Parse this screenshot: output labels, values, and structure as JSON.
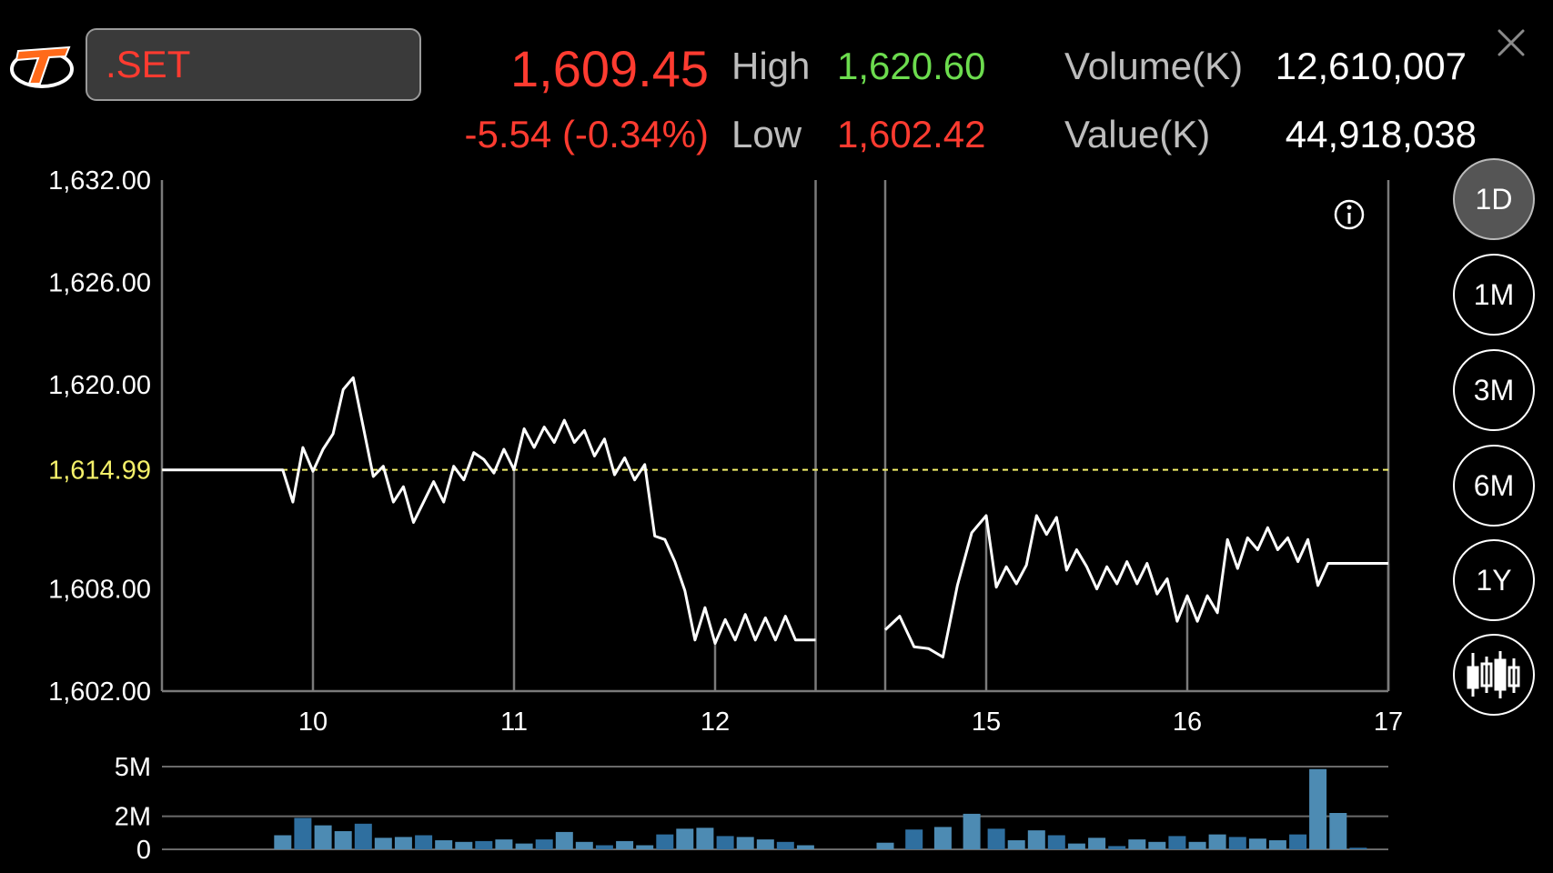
{
  "header": {
    "symbol": ".SET",
    "price": "1,609.45",
    "change": "-5.54 (-0.34%)",
    "high_label": "High",
    "high_value": "1,620.60",
    "low_label": "Low",
    "low_value": "1,602.42",
    "volume_label": "Volume(K)",
    "volume_value": "12,610,007",
    "value_label": "Value(K)",
    "value_value": "44,918,038"
  },
  "periods": [
    {
      "label": "1D",
      "active": true
    },
    {
      "label": "1M",
      "active": false
    },
    {
      "label": "3M",
      "active": false
    },
    {
      "label": "6M",
      "active": false
    },
    {
      "label": "1Y",
      "active": false
    }
  ],
  "colors": {
    "down": "#ff3b30",
    "up": "#6cdc4e",
    "prev_close": "#f4f06a",
    "volume_bar": "#4d8bb3",
    "volume_bar_highlight": "#2f6f9f",
    "logo": "#ff6a1a"
  },
  "icons": {
    "logo": "streaming-logo-icon",
    "close": "close-icon",
    "info": "info-icon",
    "chart_type": "candlestick-icon"
  },
  "chart_data": {
    "type": "line",
    "y_ticks": [
      "1,632.00",
      "1,626.00",
      "1,620.00",
      "1,608.00",
      "1,602.00"
    ],
    "y_tick_values": [
      1632,
      1626,
      1620,
      1608,
      1602
    ],
    "ylim": [
      1602,
      1632
    ],
    "prev_close_label": "1,614.99",
    "prev_close": 1614.99,
    "x_ticks": [
      "10",
      "11",
      "12",
      "15",
      "16",
      "17"
    ],
    "x_tick_values": [
      10,
      11,
      12,
      15,
      16,
      17
    ],
    "break_start": 12.5,
    "break_end": 14.65,
    "series": [
      {
        "session": "morning",
        "points": [
          [
            9.25,
            1614.99
          ],
          [
            9.85,
            1614.99
          ],
          [
            9.9,
            1613.1
          ],
          [
            9.95,
            1616.3
          ],
          [
            10.0,
            1614.9
          ],
          [
            10.05,
            1616.2
          ],
          [
            10.1,
            1617.1
          ],
          [
            10.15,
            1619.7
          ],
          [
            10.2,
            1620.4
          ],
          [
            10.25,
            1617.5
          ],
          [
            10.3,
            1614.6
          ],
          [
            10.35,
            1615.2
          ],
          [
            10.4,
            1613.1
          ],
          [
            10.45,
            1614.0
          ],
          [
            10.5,
            1611.9
          ],
          [
            10.55,
            1613.1
          ],
          [
            10.6,
            1614.3
          ],
          [
            10.65,
            1613.1
          ],
          [
            10.7,
            1615.2
          ],
          [
            10.75,
            1614.4
          ],
          [
            10.8,
            1616.0
          ],
          [
            10.85,
            1615.6
          ],
          [
            10.9,
            1614.8
          ],
          [
            10.95,
            1616.2
          ],
          [
            11.0,
            1615.0
          ],
          [
            11.05,
            1617.4
          ],
          [
            11.1,
            1616.3
          ],
          [
            11.15,
            1617.5
          ],
          [
            11.2,
            1616.6
          ],
          [
            11.25,
            1617.9
          ],
          [
            11.3,
            1616.6
          ],
          [
            11.35,
            1617.3
          ],
          [
            11.4,
            1615.8
          ],
          [
            11.45,
            1616.8
          ],
          [
            11.5,
            1614.7
          ],
          [
            11.55,
            1615.7
          ],
          [
            11.6,
            1614.4
          ],
          [
            11.65,
            1615.3
          ],
          [
            11.7,
            1611.1
          ],
          [
            11.75,
            1610.9
          ],
          [
            11.8,
            1609.6
          ],
          [
            11.85,
            1607.9
          ],
          [
            11.9,
            1605.0
          ],
          [
            11.95,
            1606.9
          ],
          [
            12.0,
            1604.8
          ],
          [
            12.05,
            1606.2
          ],
          [
            12.1,
            1605.0
          ],
          [
            12.15,
            1606.5
          ],
          [
            12.2,
            1605.0
          ],
          [
            12.25,
            1606.3
          ],
          [
            12.3,
            1605.0
          ],
          [
            12.35,
            1606.4
          ],
          [
            12.4,
            1605.0
          ],
          [
            12.5,
            1605.0
          ]
        ]
      },
      {
        "session": "afternoon",
        "points": [
          [
            14.65,
            1605.6
          ],
          [
            14.7,
            1606.4
          ],
          [
            14.75,
            1604.6
          ],
          [
            14.8,
            1604.5
          ],
          [
            14.85,
            1604.0
          ],
          [
            14.9,
            1608.2
          ],
          [
            14.95,
            1611.3
          ],
          [
            15.0,
            1612.3
          ],
          [
            15.05,
            1608.1
          ],
          [
            15.1,
            1609.3
          ],
          [
            15.15,
            1608.3
          ],
          [
            15.2,
            1609.4
          ],
          [
            15.25,
            1612.3
          ],
          [
            15.3,
            1611.2
          ],
          [
            15.35,
            1612.2
          ],
          [
            15.4,
            1609.1
          ],
          [
            15.45,
            1610.3
          ],
          [
            15.5,
            1609.3
          ],
          [
            15.55,
            1608.0
          ],
          [
            15.6,
            1609.3
          ],
          [
            15.65,
            1608.3
          ],
          [
            15.7,
            1609.6
          ],
          [
            15.75,
            1608.3
          ],
          [
            15.8,
            1609.5
          ],
          [
            15.85,
            1607.7
          ],
          [
            15.9,
            1608.6
          ],
          [
            15.95,
            1606.1
          ],
          [
            16.0,
            1607.6
          ],
          [
            16.05,
            1606.1
          ],
          [
            16.1,
            1607.6
          ],
          [
            16.15,
            1606.6
          ],
          [
            16.2,
            1610.9
          ],
          [
            16.25,
            1609.2
          ],
          [
            16.3,
            1611.0
          ],
          [
            16.35,
            1610.3
          ],
          [
            16.4,
            1611.6
          ],
          [
            16.45,
            1610.3
          ],
          [
            16.5,
            1611.0
          ],
          [
            16.55,
            1609.6
          ],
          [
            16.6,
            1610.9
          ],
          [
            16.65,
            1608.2
          ],
          [
            16.7,
            1609.5
          ],
          [
            17.0,
            1609.5
          ]
        ]
      }
    ],
    "volume": {
      "y_ticks": [
        "5M",
        "2M",
        "0"
      ],
      "y_tick_values": [
        5,
        2,
        0
      ],
      "ylim": [
        0,
        5
      ],
      "x": [
        9.85,
        9.95,
        10.05,
        10.15,
        10.25,
        10.35,
        10.45,
        10.55,
        10.65,
        10.75,
        10.85,
        10.95,
        11.05,
        11.15,
        11.25,
        11.35,
        11.45,
        11.55,
        11.65,
        11.75,
        11.85,
        11.95,
        12.05,
        12.15,
        12.25,
        12.35,
        12.45,
        14.65,
        14.75,
        14.85,
        14.95,
        15.05,
        15.15,
        15.25,
        15.35,
        15.45,
        15.55,
        15.65,
        15.75,
        15.85,
        15.95,
        16.05,
        16.15,
        16.25,
        16.35,
        16.45,
        16.55,
        16.65,
        16.75,
        16.85
      ],
      "values": [
        0.85,
        1.9,
        1.45,
        1.1,
        1.55,
        0.7,
        0.75,
        0.85,
        0.55,
        0.45,
        0.5,
        0.6,
        0.35,
        0.6,
        1.05,
        0.45,
        0.25,
        0.5,
        0.25,
        0.9,
        1.25,
        1.3,
        0.8,
        0.75,
        0.6,
        0.45,
        0.25,
        0.4,
        1.2,
        1.35,
        2.15,
        1.25,
        0.55,
        1.15,
        0.85,
        0.35,
        0.7,
        0.2,
        0.6,
        0.45,
        0.8,
        0.45,
        0.9,
        0.75,
        0.65,
        0.55,
        0.9,
        4.85,
        2.2,
        0.1
      ]
    }
  }
}
